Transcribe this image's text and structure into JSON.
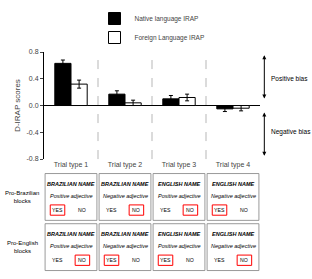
{
  "chart_data": {
    "type": "bar",
    "categories": [
      "Trial type 1",
      "Trial type 2",
      "Trial type 3",
      "Trial type 4"
    ],
    "series": [
      {
        "name": "Native language IRAP",
        "color": "black",
        "values": [
          0.63,
          0.17,
          0.1,
          -0.05
        ],
        "errors": [
          0.05,
          0.05,
          0.05,
          0.04
        ]
      },
      {
        "name": "Foreign Language IRAP",
        "color": "white",
        "values": [
          0.32,
          0.04,
          0.12,
          -0.04
        ],
        "errors": [
          0.06,
          0.04,
          0.05,
          0.04
        ]
      }
    ],
    "ylabel": "D-IRAP scores",
    "ylim": [
      -0.8,
      0.8
    ],
    "yticks": [
      -0.8,
      -0.4,
      {
        "value": 0.0,
        "label": "0.0"
      },
      0.4,
      0.8
    ],
    "grid": false,
    "legend": "top",
    "annotations": [
      "Positive bias",
      "Negative bias"
    ],
    "table": {
      "buttons": [
        "YES",
        "NO"
      ],
      "color": "red",
      "rows": [
        {
          "label": "Pro-Brazilian\nblocks",
          "cells": [
            {
              "top": "BRAZILIAN NAME",
              "mid": "Positive adjective",
              "selected": "YES"
            },
            {
              "top": "BRAZILIAN NAME",
              "mid": "Negative adjective",
              "selected": "NO"
            },
            {
              "top": "ENGLISH NAME",
              "mid": "Positive adjective",
              "selected": "NO"
            },
            {
              "top": "ENGLISH NAME",
              "mid": "Negative adjective",
              "selected": "YES"
            }
          ]
        },
        {
          "label": "Pro-English\nblocks",
          "cells": [
            {
              "top": "BRAZILIAN NAME",
              "mid": "Positive adjective",
              "selected": "NO"
            },
            {
              "top": "BRAZILIAN NAME",
              "mid": "Negative adjective",
              "selected": "YES"
            },
            {
              "top": "ENGLISH NAME",
              "mid": "Positive adjective",
              "selected": "YES"
            },
            {
              "top": "ENGLISH NAME",
              "mid": "Negative adjective",
              "selected": "NO"
            }
          ]
        }
      ]
    }
  }
}
